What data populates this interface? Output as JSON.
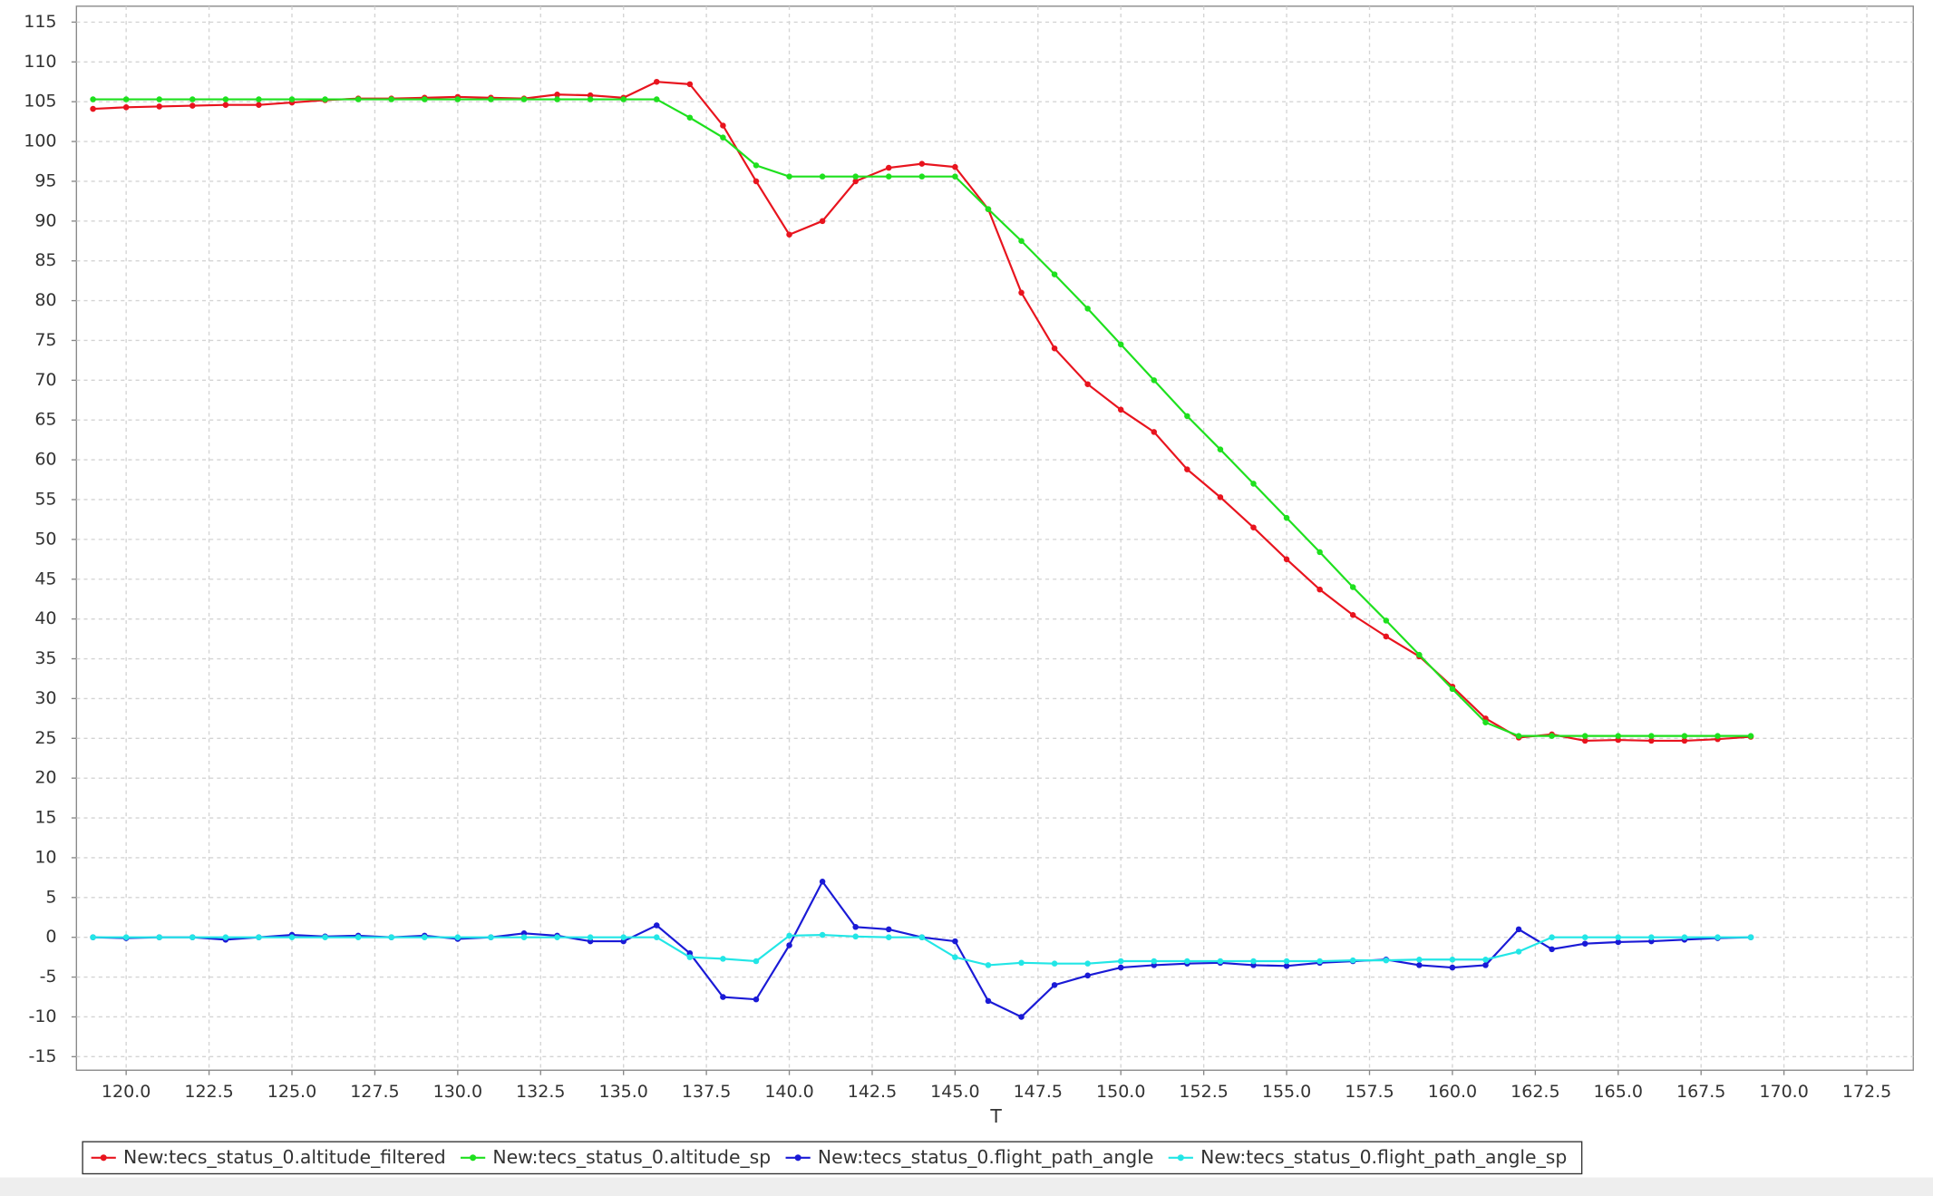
{
  "chart_data": {
    "type": "line",
    "x_label": "T",
    "grid": true,
    "legend": "bottom",
    "x": [
      119,
      120,
      121,
      122,
      123,
      124,
      125,
      126,
      127,
      128,
      129,
      130,
      131,
      132,
      133,
      134,
      135,
      136,
      137,
      138,
      139,
      140,
      141,
      142,
      143,
      144,
      145,
      146,
      147,
      148,
      149,
      150,
      151,
      152,
      153,
      154,
      155,
      156,
      157,
      158,
      159,
      160,
      161,
      162,
      163,
      164,
      165,
      166,
      167,
      168,
      169
    ],
    "xlim": [
      118.5,
      173.9
    ],
    "ylim": [
      -16.7,
      117
    ],
    "xticks": [
      {
        "value": 120,
        "label": "120.0"
      },
      {
        "value": 122.5,
        "label": "122.5"
      },
      {
        "value": 125,
        "label": "125.0"
      },
      {
        "value": 127.5,
        "label": "127.5"
      },
      {
        "value": 130,
        "label": "130.0"
      },
      {
        "value": 132.5,
        "label": "132.5"
      },
      {
        "value": 135,
        "label": "135.0"
      },
      {
        "value": 137.5,
        "label": "137.5"
      },
      {
        "value": 140,
        "label": "140.0"
      },
      {
        "value": 142.5,
        "label": "142.5"
      },
      {
        "value": 145,
        "label": "145.0"
      },
      {
        "value": 147.5,
        "label": "147.5"
      },
      {
        "value": 150,
        "label": "150.0"
      },
      {
        "value": 152.5,
        "label": "152.5"
      },
      {
        "value": 155,
        "label": "155.0"
      },
      {
        "value": 157.5,
        "label": "157.5"
      },
      {
        "value": 160,
        "label": "160.0"
      },
      {
        "value": 162.5,
        "label": "162.5"
      },
      {
        "value": 165,
        "label": "165.0"
      },
      {
        "value": 167.5,
        "label": "167.5"
      },
      {
        "value": 170,
        "label": "170.0"
      },
      {
        "value": 172.5,
        "label": "172.5"
      }
    ],
    "yticks": [
      -15,
      -10,
      -5,
      0,
      5,
      10,
      15,
      20,
      25,
      30,
      35,
      40,
      45,
      50,
      55,
      60,
      65,
      70,
      75,
      80,
      85,
      90,
      95,
      100,
      105,
      110,
      115
    ],
    "series": [
      {
        "name": "New:tecs_status_0.altitude_filtered",
        "color": "#e8141e",
        "values": [
          104.1,
          104.3,
          104.4,
          104.5,
          104.6,
          104.6,
          104.9,
          105.2,
          105.4,
          105.4,
          105.5,
          105.6,
          105.5,
          105.4,
          105.9,
          105.8,
          105.5,
          107.5,
          107.2,
          102,
          95,
          88.3,
          90,
          95,
          96.7,
          97.2,
          96.8,
          91.5,
          81,
          74,
          69.5,
          66.3,
          63.5,
          58.8,
          55.3,
          51.5,
          47.5,
          43.7,
          40.5,
          37.8,
          35.3,
          31.5,
          27.5,
          25.1,
          25.5,
          24.7,
          24.8,
          24.7,
          24.7,
          24.9,
          25.2
        ]
      },
      {
        "name": "New:tecs_status_0.altitude_sp",
        "color": "#1ee01e",
        "values": [
          105.3,
          105.3,
          105.3,
          105.3,
          105.3,
          105.3,
          105.3,
          105.3,
          105.3,
          105.3,
          105.3,
          105.3,
          105.3,
          105.3,
          105.3,
          105.3,
          105.3,
          105.3,
          103,
          100.5,
          97,
          95.6,
          95.6,
          95.6,
          95.6,
          95.6,
          95.6,
          91.5,
          87.5,
          83.3,
          79,
          74.5,
          70,
          65.5,
          61.3,
          57,
          52.7,
          48.4,
          44,
          39.8,
          35.5,
          31.2,
          27,
          25.3,
          25.3,
          25.3,
          25.3,
          25.3,
          25.3,
          25.3,
          25.3
        ]
      },
      {
        "name": "New:tecs_status_0.flight_path_angle",
        "color": "#1a1ad6",
        "values": [
          0,
          -0.1,
          0,
          0,
          -0.3,
          0,
          0.3,
          0.1,
          0.2,
          0,
          0.2,
          -0.2,
          0,
          0.5,
          0.2,
          -0.5,
          -0.5,
          1.5,
          -2,
          -7.5,
          -7.8,
          -1,
          7,
          1.3,
          1,
          0,
          -0.5,
          -8,
          -10,
          -6,
          -4.8,
          -3.8,
          -3.5,
          -3.3,
          -3.2,
          -3.5,
          -3.6,
          -3.2,
          -3,
          -2.8,
          -3.5,
          -3.8,
          -3.5,
          1,
          -1.5,
          -0.8,
          -0.6,
          -0.5,
          -0.3,
          -0.1,
          0
        ]
      },
      {
        "name": "New:tecs_status_0.flight_path_angle_sp",
        "color": "#22e6e6",
        "values": [
          0,
          0,
          0,
          0,
          0,
          0,
          0,
          0,
          0,
          0,
          0,
          0,
          0,
          0,
          0,
          0,
          0,
          0,
          -2.5,
          -2.7,
          -3,
          0.2,
          0.3,
          0.1,
          0,
          0,
          -2.5,
          -3.5,
          -3.2,
          -3.3,
          -3.3,
          -3,
          -3,
          -3,
          -3,
          -3,
          -3,
          -3,
          -2.9,
          -2.9,
          -2.8,
          -2.8,
          -2.8,
          -1.8,
          0,
          0,
          0,
          0,
          0,
          0,
          0
        ]
      }
    ]
  }
}
